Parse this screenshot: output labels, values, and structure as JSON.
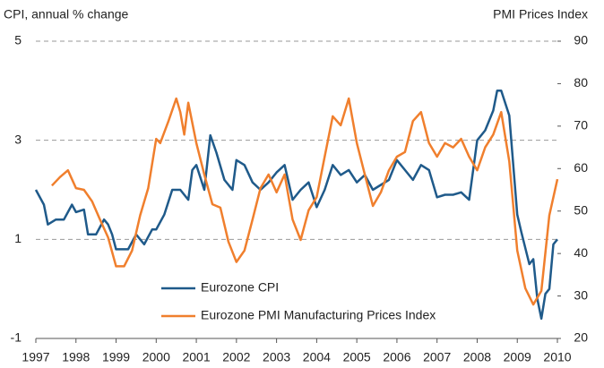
{
  "chart_data": {
    "type": "line",
    "y_label": "CPI, annual % change",
    "y2_label": "PMI Prices Index",
    "xlim": [
      1997,
      2010
    ],
    "xticks": [
      1997,
      1998,
      1999,
      2000,
      2001,
      2002,
      2003,
      2004,
      2005,
      2006,
      2007,
      2008,
      2009,
      2010
    ],
    "ylim": [
      -1,
      5
    ],
    "yticks": [
      -1,
      1,
      3,
      5
    ],
    "y2lim": [
      20,
      90
    ],
    "y2ticks": [
      20,
      30,
      40,
      50,
      60,
      70,
      80,
      90
    ],
    "grid": true,
    "legend": "bottom-left",
    "series": [
      {
        "name": "Eurozone CPI",
        "color": "#1f5a8a",
        "axis": "y",
        "x": [
          1997.0,
          1997.2,
          1997.3,
          1997.5,
          1997.7,
          1997.9,
          1998.0,
          1998.2,
          1998.3,
          1998.5,
          1998.7,
          1998.8,
          1998.9,
          1999.0,
          1999.3,
          1999.5,
          1999.7,
          1999.9,
          2000.0,
          2000.2,
          2000.4,
          2000.6,
          2000.8,
          2000.9,
          2001.0,
          2001.2,
          2001.35,
          2001.5,
          2001.7,
          2001.9,
          2002.0,
          2002.2,
          2002.4,
          2002.6,
          2002.8,
          2003.0,
          2003.2,
          2003.4,
          2003.6,
          2003.8,
          2004.0,
          2004.2,
          2004.4,
          2004.6,
          2004.8,
          2005.0,
          2005.2,
          2005.4,
          2005.6,
          2005.8,
          2006.0,
          2006.2,
          2006.4,
          2006.6,
          2006.8,
          2007.0,
          2007.2,
          2007.4,
          2007.6,
          2007.8,
          2008.0,
          2008.2,
          2008.4,
          2008.5,
          2008.6,
          2008.8,
          2009.0,
          2009.1,
          2009.3,
          2009.4,
          2009.5,
          2009.6,
          2009.7,
          2009.8,
          2009.9,
          2010.0
        ],
        "values": [
          2.0,
          1.7,
          1.3,
          1.4,
          1.4,
          1.7,
          1.55,
          1.6,
          1.1,
          1.1,
          1.4,
          1.3,
          1.1,
          0.8,
          0.8,
          1.1,
          0.9,
          1.2,
          1.2,
          1.5,
          2.0,
          2.0,
          1.8,
          2.4,
          2.5,
          2.0,
          3.1,
          2.75,
          2.2,
          2.0,
          2.6,
          2.5,
          2.15,
          2.0,
          2.15,
          2.35,
          2.5,
          1.8,
          2.0,
          2.15,
          1.65,
          2.0,
          2.5,
          2.3,
          2.4,
          2.15,
          2.3,
          2.0,
          2.1,
          2.2,
          2.6,
          2.4,
          2.2,
          2.5,
          2.4,
          1.85,
          1.9,
          1.9,
          1.95,
          1.8,
          3.0,
          3.2,
          3.6,
          4.0,
          4.0,
          3.5,
          1.5,
          1.15,
          0.5,
          0.6,
          -0.2,
          -0.6,
          -0.1,
          0.0,
          0.9,
          1.0
        ]
      },
      {
        "name": "Eurozone PMI Manufacturing Prices Index",
        "color": "#f07f2d",
        "axis": "y2",
        "x": [
          1997.4,
          1997.6,
          1997.8,
          1998.0,
          1998.2,
          1998.4,
          1998.6,
          1998.8,
          1999.0,
          1999.2,
          1999.4,
          1999.6,
          1999.8,
          2000.0,
          2000.1,
          2000.3,
          2000.5,
          2000.6,
          2000.7,
          2000.8,
          2001.0,
          2001.2,
          2001.4,
          2001.6,
          2001.8,
          2002.0,
          2002.2,
          2002.4,
          2002.6,
          2002.8,
          2003.0,
          2003.2,
          2003.4,
          2003.6,
          2003.8,
          2004.0,
          2004.2,
          2004.4,
          2004.6,
          2004.8,
          2005.0,
          2005.2,
          2005.4,
          2005.6,
          2005.8,
          2006.0,
          2006.2,
          2006.4,
          2006.6,
          2006.8,
          2007.0,
          2007.2,
          2007.4,
          2007.6,
          2007.8,
          2008.0,
          2008.2,
          2008.4,
          2008.6,
          2008.8,
          2009.0,
          2009.2,
          2009.4,
          2009.6,
          2009.8,
          2010.0
        ],
        "values": [
          56,
          58,
          59.6,
          55.4,
          55,
          52.3,
          48,
          43.8,
          37,
          37,
          40.7,
          49,
          55.4,
          67,
          66,
          71,
          76.5,
          73.3,
          68,
          75.5,
          66,
          58.6,
          51.6,
          50.8,
          42.8,
          38,
          40.7,
          48,
          55.4,
          58.6,
          54.4,
          58.6,
          48,
          43.2,
          50.2,
          53.3,
          62.8,
          72.3,
          70.2,
          76.5,
          66,
          58.6,
          51.2,
          54.4,
          59.6,
          62.8,
          63.9,
          71.2,
          73.3,
          66,
          62.8,
          66,
          65,
          67,
          62.8,
          59.6,
          65,
          68,
          73.3,
          61.7,
          40.7,
          31.8,
          28,
          31.2,
          49,
          57.5
        ]
      }
    ]
  }
}
